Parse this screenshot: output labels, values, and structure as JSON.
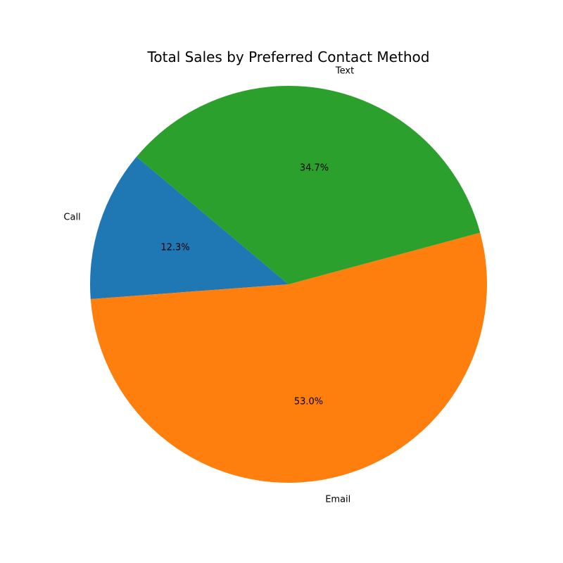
{
  "chart_data": {
    "type": "pie",
    "title": "Total Sales by Preferred Contact Method",
    "categories": [
      "Call",
      "Email",
      "Text"
    ],
    "values": [
      12.3,
      53.0,
      34.7
    ],
    "percent_labels": [
      "12.3%",
      "53.0%",
      "34.7%"
    ],
    "colors": [
      "#1f77b4",
      "#ff7f0e",
      "#2ca02c"
    ],
    "start_angle_deg": 140,
    "direction": "counterclockwise",
    "legend": "none"
  }
}
